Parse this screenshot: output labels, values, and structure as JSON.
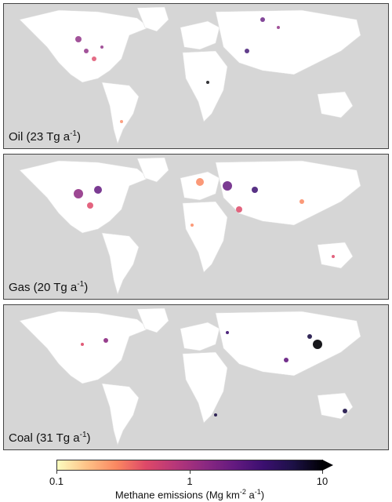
{
  "panels": [
    {
      "name": "Oil",
      "label_main": "Oil (23 Tg a",
      "label_sup": "-1",
      "label_end": ")"
    },
    {
      "name": "Gas",
      "label_main": "Gas (20 Tg a",
      "label_sup": "-1",
      "label_end": ")"
    },
    {
      "name": "Coal",
      "label_main": "Coal (31 Tg a",
      "label_sup": "-1",
      "label_end": ")"
    }
  ],
  "colorbar": {
    "ticks": [
      "0.1",
      "1",
      "10"
    ],
    "title_main": "Methane emissions (Mg km",
    "title_sup1": "-2",
    "title_mid": " a",
    "title_sup2": "-1",
    "title_end": ")",
    "scale": "log",
    "colormap": [
      "#fcfdbf",
      "#fec287",
      "#fb8861",
      "#de4968",
      "#b73779",
      "#8c2981",
      "#641a80",
      "#3b0f70",
      "#1d1147",
      "#000004"
    ]
  },
  "colors": {
    "ocean": "#d6d6d6",
    "land": "#ffffff"
  }
}
